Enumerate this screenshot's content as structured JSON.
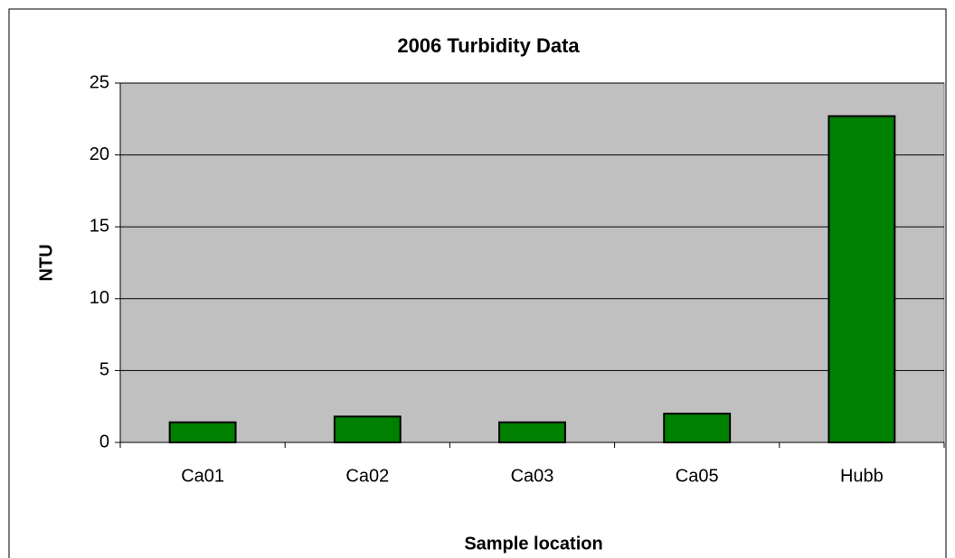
{
  "chart_data": {
    "type": "bar",
    "title": "2006 Turbidity Data",
    "x_label": "Sample location",
    "y_label": "NTU",
    "categories": [
      "Ca01",
      "Ca02",
      "Ca03",
      "Ca05",
      "Hubb"
    ],
    "values": [
      1.4,
      1.8,
      1.4,
      2.0,
      22.7
    ],
    "color": "#008000",
    "ylim": [
      0,
      25
    ],
    "yticks": [
      0,
      5,
      10,
      15,
      20,
      25
    ],
    "grid": true
  }
}
